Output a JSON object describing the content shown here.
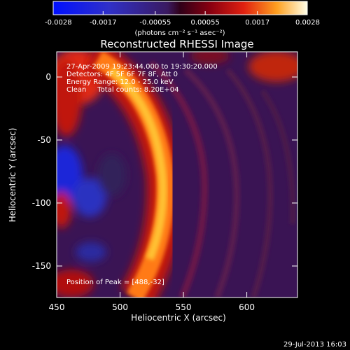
{
  "colorbar": {
    "ticks": [
      "-0.0028",
      "-0.0017",
      "-0.00055",
      "0.00055",
      "0.0017",
      "0.0028"
    ],
    "unit_label": "(photons cm⁻² s⁻¹ asec⁻²)"
  },
  "chart_data": {
    "type": "heatmap",
    "title": "Reconstructed RHESSI Image",
    "xlabel": "Heliocentric X (arcsec)",
    "ylabel": "Heliocentric Y (arcsec)",
    "xlim": [
      450,
      640
    ],
    "ylim": [
      -175,
      20
    ],
    "x_ticks": [
      450,
      500,
      550,
      600
    ],
    "y_ticks": [
      0,
      -50,
      -100,
      -150
    ],
    "color_range": [
      -0.0028,
      0.0028
    ],
    "annotations": [
      "27-Apr-2009 19:23:44.000 to 19:30:20.000",
      "Detectors: 4F 5F 6F 7F 8F, Att 0",
      "Energy Range: 12.0 - 25.0 keV",
      "Clean     Total counts: 8.20E+04"
    ],
    "peak_label": "Position of Peak = [488,-32]",
    "peak": [
      488,
      -32
    ]
  },
  "footer_date": "29-Jul-2013 16:03"
}
